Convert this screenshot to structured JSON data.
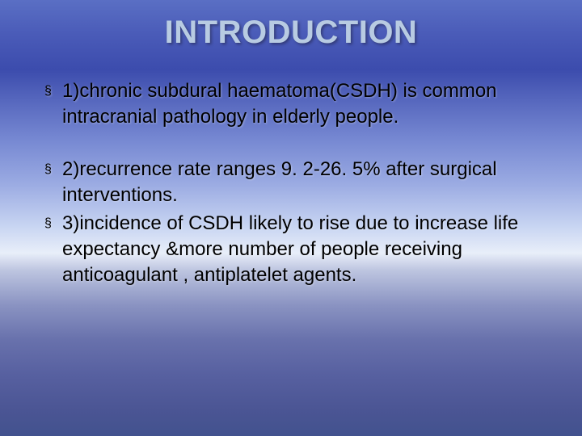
{
  "slide": {
    "title": "INTRODUCTION",
    "title_color": "#b8cbe2",
    "title_fontsize": 40,
    "body_fontsize": 24,
    "body_color": "#000000",
    "bullet_glyph": "§",
    "background_gradient": [
      "#5a6fc4",
      "#4a5bb8",
      "#3c4cad",
      "#5a6bc0",
      "#7688d2",
      "#9aaae2",
      "#c8d5f2",
      "#e8eef9",
      "#bdc5e0",
      "#8a93c2",
      "#6871ac",
      "#5760a0",
      "#4b5594",
      "#42528e"
    ],
    "items": [
      "1)chronic subdural haematoma(CSDH) is common intracranial pathology in elderly people.",
      "2)recurrence rate ranges 9. 2-26. 5% after surgical interventions.",
      "3)incidence of CSDH likely to rise due to increase life expectancy &more number of people receiving anticoagulant , antiplatelet agents."
    ],
    "gap_after_index": 0
  }
}
